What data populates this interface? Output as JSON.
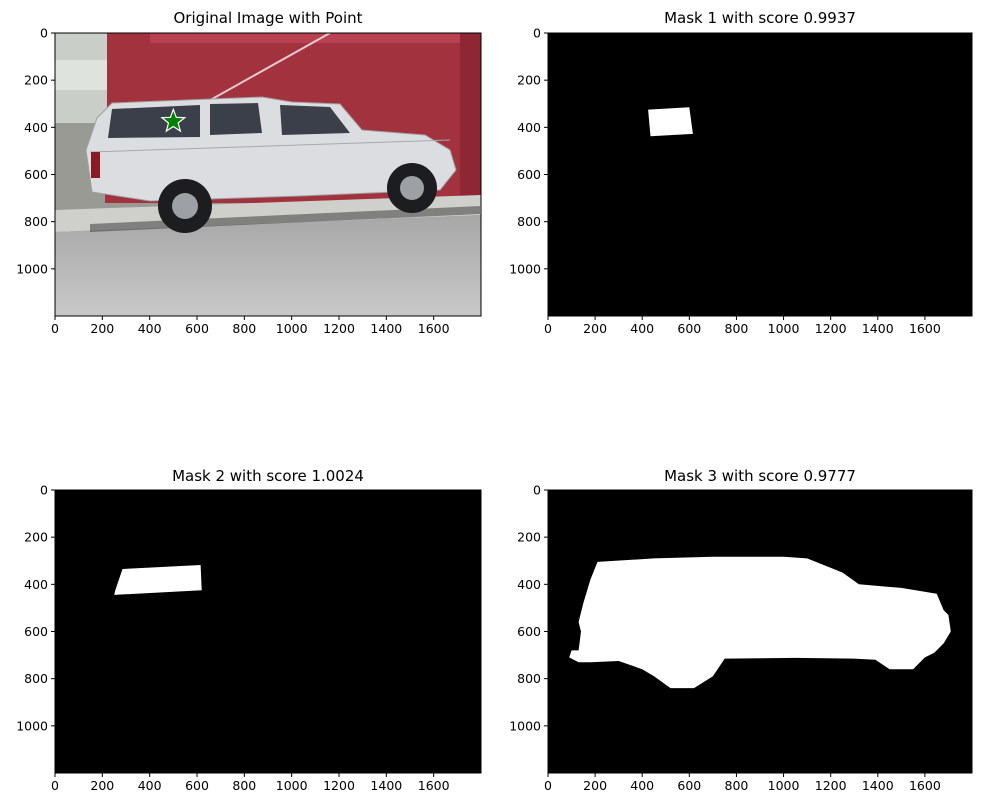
{
  "chart_data": [
    {
      "type": "image",
      "title": "Original Image with Point",
      "xlim": [
        0,
        1800
      ],
      "ylim": [
        1200,
        0
      ],
      "xticks": [
        0,
        200,
        400,
        600,
        800,
        1000,
        1200,
        1400,
        1600
      ],
      "yticks": [
        0,
        200,
        400,
        600,
        800,
        1000
      ],
      "point": {
        "x": 500,
        "y": 375,
        "marker": "star",
        "color": "#008000"
      }
    },
    {
      "type": "image",
      "title": "Mask 1 with score 0.9937",
      "xlim": [
        0,
        1800
      ],
      "ylim": [
        1200,
        0
      ],
      "xticks": [
        0,
        200,
        400,
        600,
        800,
        1000,
        1200,
        1400,
        1600
      ],
      "yticks": [
        0,
        200,
        400,
        600,
        800,
        1000
      ],
      "mask_polygon": [
        [
          425,
          325
        ],
        [
          600,
          315
        ],
        [
          615,
          428
        ],
        [
          435,
          438
        ]
      ]
    },
    {
      "type": "image",
      "title": "Mask 2 with score 1.0024",
      "xlim": [
        0,
        1800
      ],
      "ylim": [
        1200,
        0
      ],
      "xticks": [
        0,
        200,
        400,
        600,
        800,
        1000,
        1200,
        1400,
        1600
      ],
      "yticks": [
        0,
        200,
        400,
        600,
        800,
        1000
      ],
      "mask_polygon": [
        [
          285,
          335
        ],
        [
          615,
          318
        ],
        [
          620,
          425
        ],
        [
          250,
          445
        ],
        [
          255,
          425
        ]
      ]
    },
    {
      "type": "image",
      "title": "Mask 3 with score 0.9777",
      "xlim": [
        0,
        1800
      ],
      "ylim": [
        1200,
        0
      ],
      "xticks": [
        0,
        200,
        400,
        600,
        800,
        1000,
        1200,
        1400,
        1600
      ],
      "yticks": [
        0,
        200,
        400,
        600,
        800,
        1000
      ],
      "mask_polygon": [
        [
          210,
          305
        ],
        [
          450,
          290
        ],
        [
          700,
          283
        ],
        [
          1000,
          283
        ],
        [
          1100,
          290
        ],
        [
          1250,
          350
        ],
        [
          1320,
          400
        ],
        [
          1500,
          415
        ],
        [
          1650,
          440
        ],
        [
          1680,
          510
        ],
        [
          1700,
          530
        ],
        [
          1710,
          600
        ],
        [
          1680,
          650
        ],
        [
          1640,
          690
        ],
        [
          1600,
          710
        ],
        [
          1550,
          760
        ],
        [
          1450,
          760
        ],
        [
          1390,
          720
        ],
        [
          1300,
          715
        ],
        [
          1050,
          712
        ],
        [
          750,
          715
        ],
        [
          700,
          790
        ],
        [
          620,
          840
        ],
        [
          520,
          840
        ],
        [
          450,
          790
        ],
        [
          400,
          760
        ],
        [
          300,
          725
        ],
        [
          180,
          730
        ],
        [
          130,
          730
        ],
        [
          90,
          710
        ],
        [
          100,
          680
        ],
        [
          130,
          680
        ],
        [
          140,
          600
        ],
        [
          130,
          560
        ],
        [
          150,
          480
        ],
        [
          180,
          380
        ]
      ]
    }
  ]
}
